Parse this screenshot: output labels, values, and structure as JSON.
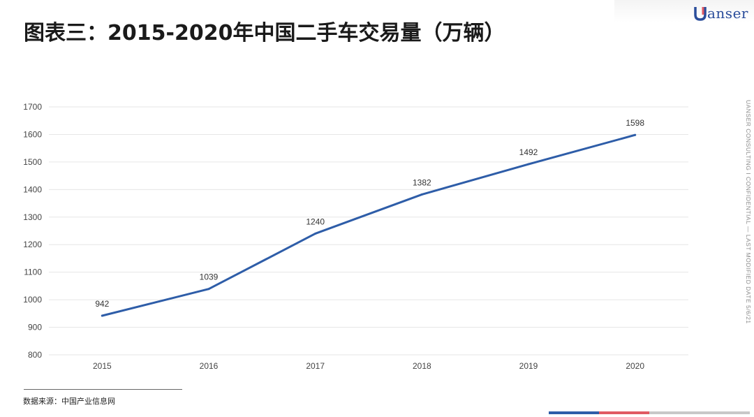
{
  "title": "图表三：2015-2020年中国二手车交易量（万辆）",
  "logo": {
    "text": "anser"
  },
  "side_text": "UANSER CONSULTING   I   CONFIDENTIAL — LAST MODIFIED DATE 5/6/21",
  "source": "数据来源：中国产业信息网",
  "colors": {
    "line": "#2e5da8",
    "grid": "#e6e6e6",
    "accent_red": "#e05a63",
    "accent_blue": "#2e5da8",
    "accent_gray": "#c8c8c8"
  },
  "chart_data": {
    "type": "line",
    "categories": [
      "2015",
      "2016",
      "2017",
      "2018",
      "2019",
      "2020"
    ],
    "series": [
      {
        "values": [
          942,
          1039,
          1240,
          1382,
          1492,
          1598
        ]
      }
    ],
    "ylim": [
      800,
      1700
    ],
    "yticks": [
      "800",
      "900",
      "1000",
      "1100",
      "1200",
      "1300",
      "1400",
      "1500",
      "1600",
      "1700"
    ],
    "data_labels": [
      "942",
      "1039",
      "1240",
      "1382",
      "1492",
      "1598"
    ],
    "grid": true,
    "legend": false
  }
}
